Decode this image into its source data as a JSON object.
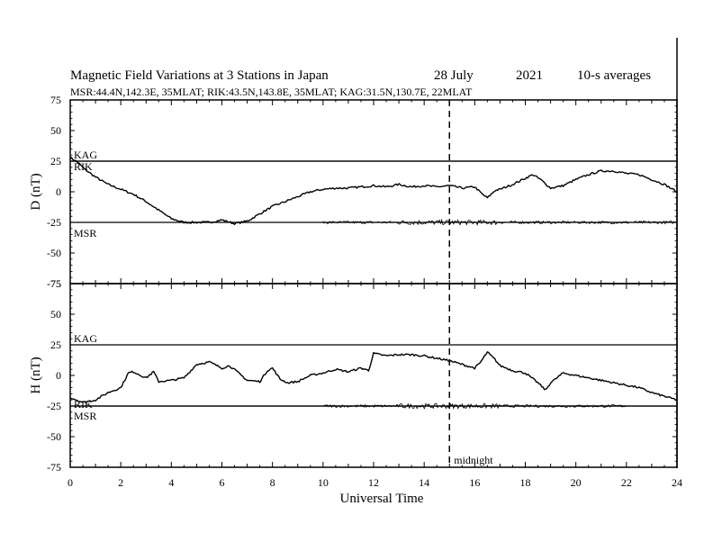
{
  "chart_data": [
    {
      "panel": "top",
      "type": "line",
      "title": "Magnetic Field Variations at 3 Stations in Japan",
      "date": "28 July",
      "year": "2021",
      "averaging": "10-s averages",
      "subtitle": "MSR:44.4N,142.3E, 35MLAT;  RIK:43.5N,143.8E, 35MLAT;  KAG:31.5N,130.7E, 22MLAT",
      "ylabel": "D (nT)",
      "ylim": [
        -75,
        75
      ],
      "yticks": [
        "75",
        "50",
        "25",
        "0",
        "-25",
        "-50",
        "-75"
      ],
      "xlim": [
        0,
        24
      ],
      "grid": false,
      "baselines": [
        {
          "name": "KAG",
          "value": 25
        },
        {
          "name": "RIK",
          "value": 25
        },
        {
          "name": "MSR",
          "value": -25
        }
      ],
      "series": [
        {
          "name": "RIK",
          "x": [
            0,
            0.3,
            0.6,
            1,
            1.5,
            2,
            2.5,
            3,
            3.5,
            4,
            4.5,
            5,
            5.5,
            6,
            6.5,
            7,
            7.5,
            8,
            8.5,
            9,
            9.5,
            10,
            10.5,
            11,
            11.5,
            12,
            12.5,
            13,
            13.5,
            14,
            14.5,
            15,
            15.5,
            16,
            16.3,
            16.5,
            16.8,
            17,
            17.5,
            18,
            18.3,
            18.6,
            19,
            19.5,
            20,
            20.5,
            21,
            21.5,
            22,
            22.5,
            23,
            23.5,
            24
          ],
          "values": [
            28,
            24,
            18,
            12,
            6,
            2,
            -2,
            -8,
            -15,
            -22,
            -25,
            -25,
            -25,
            -23,
            -26,
            -24,
            -18,
            -12,
            -8,
            -4,
            0,
            2,
            3,
            3,
            4,
            5,
            4,
            6,
            4,
            5,
            4,
            5,
            3,
            4,
            -2,
            -5,
            1,
            2,
            6,
            11,
            14,
            10,
            3,
            5,
            10,
            14,
            17,
            17,
            15,
            14,
            10,
            6,
            0
          ]
        },
        {
          "name": "MSR",
          "x": [
            10,
            24
          ],
          "values": [
            -25,
            -25
          ]
        }
      ]
    },
    {
      "panel": "bottom",
      "type": "line",
      "ylabel": "H (nT)",
      "xlabel": "Universal Time",
      "ylim": [
        -75,
        75
      ],
      "yticks": [
        "75",
        "50",
        "25",
        "0",
        "-25",
        "-50",
        "-75"
      ],
      "xlim": [
        0,
        24
      ],
      "xticks": [
        "0",
        "2",
        "4",
        "6",
        "8",
        "10",
        "12",
        "14",
        "16",
        "18",
        "20",
        "22",
        "24"
      ],
      "grid": false,
      "baselines": [
        {
          "name": "KAG",
          "value": 25
        },
        {
          "name": "RIK",
          "value": -25
        },
        {
          "name": "MSR",
          "value": -25
        }
      ],
      "annotations": [
        {
          "text": "midnight",
          "x": 15
        }
      ],
      "series": [
        {
          "name": "RIK",
          "x": [
            0,
            0.5,
            1,
            1.5,
            2,
            2.3,
            2.5,
            3,
            3.3,
            3.5,
            4,
            4.5,
            5,
            5.5,
            6,
            6.3,
            6.6,
            7,
            7.5,
            7.8,
            8,
            8.3,
            8.6,
            9,
            9.5,
            10,
            10.5,
            11,
            11.5,
            11.8,
            12,
            12.5,
            13,
            13.5,
            14,
            14.5,
            15,
            15.5,
            16,
            16.2,
            16.5,
            16.8,
            17,
            17.5,
            18,
            18.5,
            18.8,
            19,
            19.5,
            20,
            20.5,
            21,
            21.5,
            22,
            22.5,
            23,
            23.5,
            24
          ],
          "values": [
            -18,
            -22,
            -20,
            -14,
            -10,
            2,
            3,
            -2,
            3,
            -5,
            -4,
            -2,
            9,
            11,
            6,
            8,
            3,
            -4,
            -5,
            4,
            6,
            -3,
            -6,
            -5,
            0,
            2,
            5,
            3,
            6,
            4,
            18,
            16,
            17,
            17,
            16,
            14,
            12,
            9,
            6,
            10,
            19,
            13,
            8,
            4,
            2,
            -6,
            -12,
            -6,
            2,
            0,
            -2,
            -4,
            -6,
            -8,
            -10,
            -14,
            -17,
            -20
          ]
        },
        {
          "name": "MSR",
          "x": [
            10,
            22
          ],
          "values": [
            -25,
            -25
          ]
        }
      ]
    }
  ]
}
